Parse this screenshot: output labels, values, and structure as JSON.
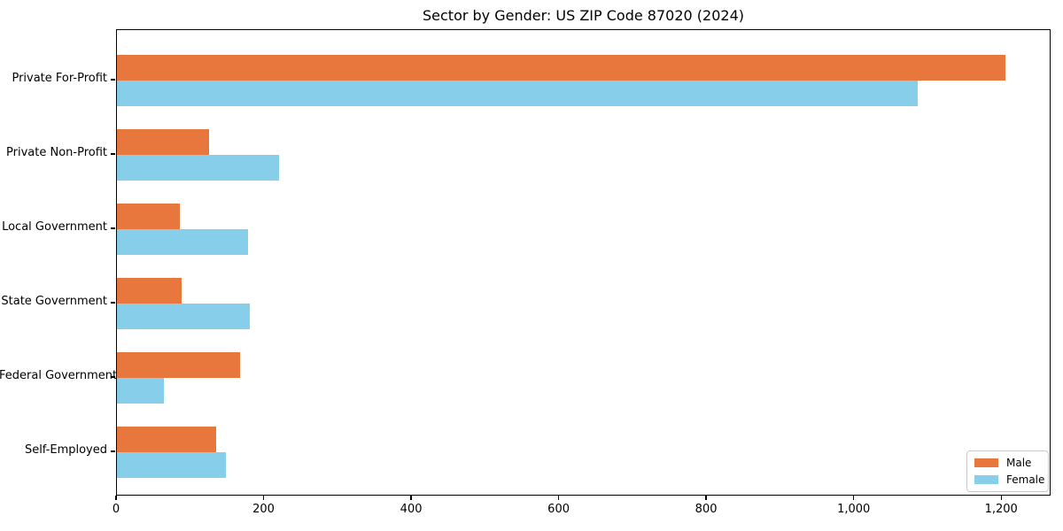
{
  "chart_data": {
    "type": "bar",
    "orientation": "horizontal",
    "title": "Sector by Gender: US ZIP Code 87020 (2024)",
    "categories": [
      "Private For-Profit",
      "Private Non-Profit",
      "Local Government",
      "State Government",
      "Federal Government",
      "Self-Employed"
    ],
    "series": [
      {
        "name": "Male",
        "color": "#e8773d",
        "values": [
          1205,
          125,
          85,
          88,
          167,
          135
        ]
      },
      {
        "name": "Female",
        "color": "#87ceeb",
        "values": [
          1085,
          220,
          178,
          180,
          64,
          148
        ]
      }
    ],
    "xlabel": "",
    "ylabel": "",
    "xlim": [
      0,
      1267
    ],
    "xticks": [
      {
        "value": 0,
        "label": "0"
      },
      {
        "value": 200,
        "label": "200"
      },
      {
        "value": 400,
        "label": "400"
      },
      {
        "value": 600,
        "label": "600"
      },
      {
        "value": 800,
        "label": "800"
      },
      {
        "value": 1000,
        "label": "1,000"
      },
      {
        "value": 1200,
        "label": "1,200"
      }
    ],
    "grid": false,
    "legend_position": "lower right"
  }
}
